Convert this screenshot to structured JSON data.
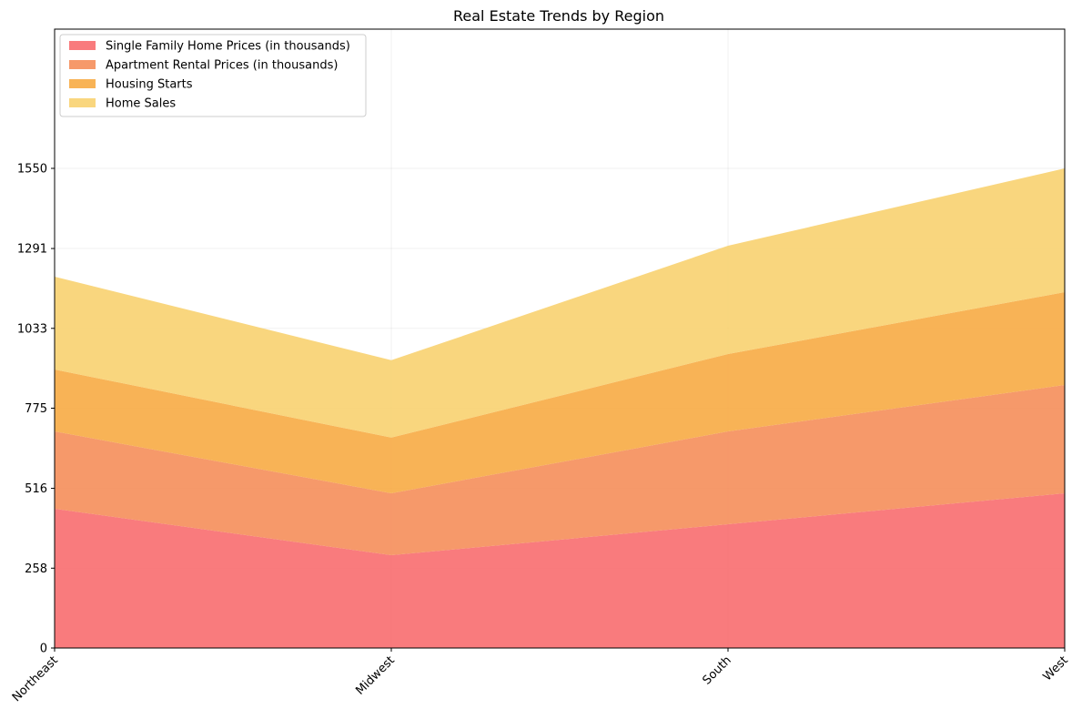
{
  "chart_data": {
    "type": "area",
    "stacked": true,
    "title": "Real Estate Trends by Region",
    "xlabel": "",
    "ylabel": "",
    "categories": [
      "Northeast",
      "Midwest",
      "South",
      "West"
    ],
    "ylim": [
      0,
      2000
    ],
    "yticks": [
      "0",
      "258",
      "516",
      "775",
      "1033",
      "1291",
      "1550"
    ],
    "grid": true,
    "legend_position": "top-left",
    "series": [
      {
        "name": "Single Family Home Prices (in thousands)",
        "color": "#f8696b",
        "values": [
          450,
          300,
          400,
          500
        ]
      },
      {
        "name": "Apartment Rental Prices (in thousands)",
        "color": "#f58b55",
        "values": [
          250,
          200,
          300,
          350
        ]
      },
      {
        "name": "Housing Starts",
        "color": "#f7a93f",
        "values": [
          200,
          180,
          250,
          300
        ]
      },
      {
        "name": "Home Sales",
        "color": "#f8d06c",
        "values": [
          300,
          250,
          350,
          400
        ]
      }
    ]
  }
}
